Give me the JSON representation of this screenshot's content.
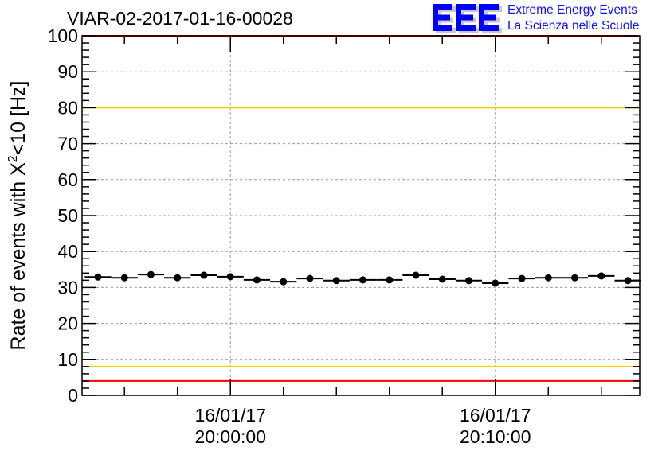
{
  "header": {
    "title": "VIAR-02-2017-01-16-00028",
    "logo_text": "EEE",
    "brand_line1": "Extreme Energy Events",
    "brand_line2": "La Scienza nelle Scuole"
  },
  "chart_data": {
    "type": "scatter",
    "title": "VIAR-02-2017-01-16-00028",
    "xlabel": "",
    "ylabel": "Rate of events with X²<10 [Hz]",
    "ylabel_parts": {
      "pre": "Rate of events with X",
      "sup": "2",
      "post": "<10 [Hz]"
    },
    "x_unit": "minutes relative to 16/01/17 20:00:00",
    "xlim": [
      -5.6,
      15.45
    ],
    "ylim": [
      0,
      100
    ],
    "bin_width_minutes": 1,
    "x": [
      -5,
      -4,
      -3,
      -2,
      -1,
      0,
      1,
      2,
      3,
      4,
      5,
      6,
      7,
      8,
      9,
      10,
      11,
      12,
      13,
      14,
      15
    ],
    "values": [
      32.9,
      32.7,
      33.6,
      32.7,
      33.4,
      33.0,
      32.1,
      31.6,
      32.5,
      31.9,
      32.1,
      32.1,
      33.4,
      32.3,
      31.9,
      31.2,
      32.5,
      32.7,
      32.7,
      33.2,
      31.9
    ],
    "y_ticks": [
      "0",
      "10",
      "20",
      "30",
      "40",
      "50",
      "60",
      "70",
      "80",
      "90",
      "100"
    ],
    "x_ticks": [
      {
        "x": 0,
        "date": "16/01/17",
        "time": "20:00:00"
      },
      {
        "x": 10,
        "date": "16/01/17",
        "time": "20:10:00"
      }
    ],
    "reference_lines": [
      {
        "y": 100,
        "color": "#ff0000"
      },
      {
        "y": 80,
        "color": "#ffcc00"
      },
      {
        "y": 8,
        "color": "#ffcc00"
      },
      {
        "y": 4,
        "color": "#ff0000"
      }
    ],
    "grid": true,
    "colors": {
      "points": "#000000",
      "grid": "#999999",
      "logo": "#0000ff",
      "logo_shadow": "#c8c8c8"
    }
  }
}
